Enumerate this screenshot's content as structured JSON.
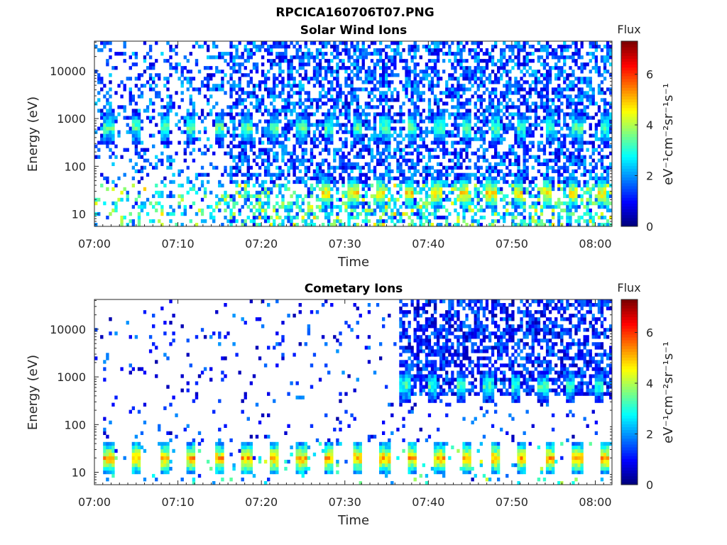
{
  "figure": {
    "title": "RPCICA160706T07.PNG"
  },
  "colorbar": {
    "label_html": "eV⁻¹cm⁻²sr⁻¹s⁻¹",
    "title": "Flux",
    "range": [
      0,
      7.3
    ],
    "ticks": [
      0,
      2,
      4,
      6
    ],
    "colormap": "jet"
  },
  "colors": {
    "axis": "#262626",
    "jet": [
      "#00008f",
      "#0000ff",
      "#00ffff",
      "#ffff00",
      "#ff0000",
      "#800000"
    ]
  },
  "chart_data": [
    {
      "type": "heatmap",
      "title": "Solar Wind Ions",
      "xlabel": "Time",
      "ylabel": "Energy (eV)",
      "x_ticks": [
        "07:00",
        "07:10",
        "07:20",
        "07:30",
        "07:40",
        "07:50",
        "08:00"
      ],
      "x_range_minutes": [
        0,
        62
      ],
      "y_scale": "log",
      "y_ticks": [
        10,
        100,
        1000,
        10000
      ],
      "y_range": [
        5.5,
        42000
      ],
      "features": [
        {
          "t_start": 1,
          "t_end": 62,
          "period_min": 3.3,
          "energy_center": 600,
          "flux": 3.4,
          "description": "periodic solar wind proton peak near 600 eV"
        },
        {
          "t_start": 27,
          "t_end": 62,
          "period_min": 3.3,
          "energy_center": 25,
          "flux": 4.8,
          "description": "periodic low-energy enhancement"
        }
      ],
      "background_flux": {
        "low": 0.5,
        "high": 2.5
      }
    },
    {
      "type": "heatmap",
      "title": "Cometary Ions",
      "xlabel": "Time",
      "ylabel": "Energy (eV)",
      "x_ticks": [
        "07:00",
        "07:10",
        "07:20",
        "07:30",
        "07:40",
        "07:50",
        "08:00"
      ],
      "x_range_minutes": [
        0,
        62
      ],
      "y_scale": "log",
      "y_ticks": [
        10,
        100,
        1000,
        10000
      ],
      "y_range": [
        5.5,
        42000
      ],
      "features": [
        {
          "t_start": 1,
          "t_end": 62,
          "period_min": 3.3,
          "energy_center": 18,
          "flux": 5.2,
          "description": "periodic cometary ion bursts at low energy"
        },
        {
          "t_start": 36.5,
          "t_end": 62,
          "period_min": 3.3,
          "energy_center": 600,
          "flux": 3.2,
          "description": "high-energy band after 07:36"
        }
      ],
      "background_flux": {
        "low": 0.3,
        "high": 2.0
      }
    }
  ]
}
